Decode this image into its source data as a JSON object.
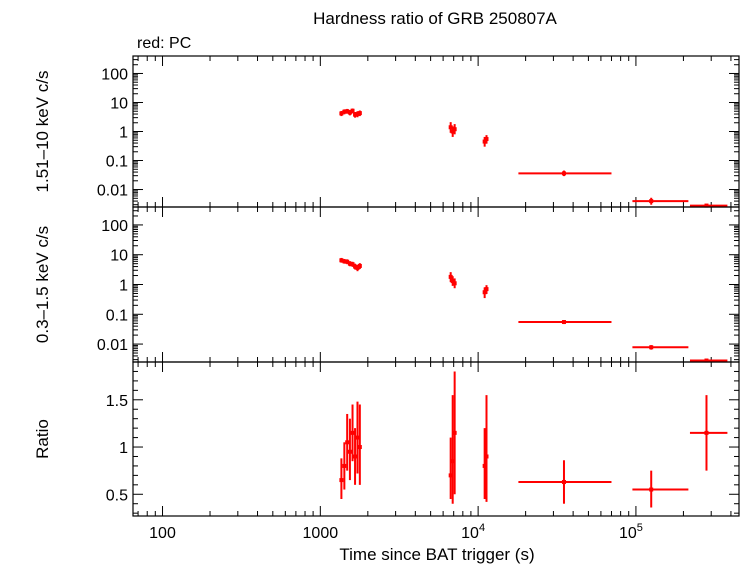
{
  "figure": {
    "title": "Hardness ratio of GRB 250807A",
    "note": "red: PC",
    "xlabel": "Time since BAT trigger (s)"
  },
  "chart_data": [
    {
      "type": "scatter",
      "panel": "top",
      "ylabel": "1.51–10 keV c/s",
      "xscale": "log",
      "yscale": "log",
      "xlim": [
        65,
        450000
      ],
      "ylim": [
        0.0025,
        400
      ],
      "xticks": [
        {
          "value": 100,
          "label": "100"
        },
        {
          "value": 1000,
          "label": "1000"
        },
        {
          "value": 10000,
          "label": "10",
          "exp": "4"
        },
        {
          "value": 100000,
          "label": "10",
          "exp": "5"
        }
      ],
      "yticks": [
        {
          "value": 0.01,
          "label": "0.01"
        },
        {
          "value": 0.1,
          "label": "0.1"
        },
        {
          "value": 1,
          "label": "1"
        },
        {
          "value": 10,
          "label": "10"
        },
        {
          "value": 100,
          "label": "100"
        }
      ],
      "series": [
        {
          "color": "#ff0000",
          "points": [
            {
              "x": 1360,
              "xlo": 1340,
              "xhi": 1380,
              "y": 4.2,
              "ylo": 3.4,
              "yhi": 5.1
            },
            {
              "x": 1420,
              "xlo": 1400,
              "xhi": 1440,
              "y": 4.8,
              "ylo": 3.9,
              "yhi": 5.8
            },
            {
              "x": 1480,
              "xlo": 1460,
              "xhi": 1500,
              "y": 5.0,
              "ylo": 4.1,
              "yhi": 6.0
            },
            {
              "x": 1540,
              "xlo": 1520,
              "xhi": 1560,
              "y": 4.5,
              "ylo": 3.6,
              "yhi": 5.5
            },
            {
              "x": 1600,
              "xlo": 1580,
              "xhi": 1620,
              "y": 5.2,
              "ylo": 4.2,
              "yhi": 6.2
            },
            {
              "x": 1660,
              "xlo": 1640,
              "xhi": 1680,
              "y": 3.8,
              "ylo": 3.0,
              "yhi": 4.7
            },
            {
              "x": 1720,
              "xlo": 1700,
              "xhi": 1740,
              "y": 4.0,
              "ylo": 3.1,
              "yhi": 5.0
            },
            {
              "x": 1780,
              "xlo": 1760,
              "xhi": 1800,
              "y": 4.3,
              "ylo": 3.4,
              "yhi": 5.3
            },
            {
              "x": 6700,
              "xlo": 6600,
              "xhi": 6800,
              "y": 1.4,
              "ylo": 0.9,
              "yhi": 2.1
            },
            {
              "x": 6900,
              "xlo": 6800,
              "xhi": 7000,
              "y": 1.0,
              "ylo": 0.65,
              "yhi": 1.5
            },
            {
              "x": 7100,
              "xlo": 7000,
              "xhi": 7200,
              "y": 1.2,
              "ylo": 0.8,
              "yhi": 1.8
            },
            {
              "x": 11000,
              "xlo": 10800,
              "xhi": 11200,
              "y": 0.45,
              "ylo": 0.3,
              "yhi": 0.65
            },
            {
              "x": 11300,
              "xlo": 11200,
              "xhi": 11400,
              "y": 0.55,
              "ylo": 0.38,
              "yhi": 0.75
            },
            {
              "x": 35000,
              "xlo": 18000,
              "xhi": 70000,
              "y": 0.036,
              "ylo": 0.029,
              "yhi": 0.045
            },
            {
              "x": 125000,
              "xlo": 95000,
              "xhi": 215000,
              "y": 0.004,
              "ylo": 0.003,
              "yhi": 0.0052
            },
            {
              "x": 280000,
              "xlo": 220000,
              "xhi": 380000,
              "y": 0.0028,
              "ylo": 0.0025,
              "yhi": 0.0031
            }
          ]
        }
      ]
    },
    {
      "type": "scatter",
      "panel": "middle",
      "ylabel": "0.3–1.5 keV c/s",
      "xscale": "log",
      "yscale": "log",
      "xlim": [
        65,
        450000
      ],
      "ylim": [
        0.0025,
        400
      ],
      "yticks": [
        {
          "value": 0.01,
          "label": "0.01"
        },
        {
          "value": 0.1,
          "label": "0.1"
        },
        {
          "value": 1,
          "label": "1"
        },
        {
          "value": 10,
          "label": "10"
        },
        {
          "value": 100,
          "label": "100"
        }
      ],
      "series": [
        {
          "color": "#ff0000",
          "points": [
            {
              "x": 1360,
              "xlo": 1340,
              "xhi": 1380,
              "y": 6.5,
              "ylo": 5.4,
              "yhi": 7.8
            },
            {
              "x": 1420,
              "xlo": 1400,
              "xhi": 1440,
              "y": 6.0,
              "ylo": 5.0,
              "yhi": 7.2
            },
            {
              "x": 1480,
              "xlo": 1460,
              "xhi": 1500,
              "y": 5.8,
              "ylo": 4.8,
              "yhi": 7.0
            },
            {
              "x": 1540,
              "xlo": 1520,
              "xhi": 1560,
              "y": 5.0,
              "ylo": 4.1,
              "yhi": 6.1
            },
            {
              "x": 1600,
              "xlo": 1580,
              "xhi": 1620,
              "y": 4.8,
              "ylo": 3.9,
              "yhi": 5.8
            },
            {
              "x": 1660,
              "xlo": 1640,
              "xhi": 1680,
              "y": 4.0,
              "ylo": 3.2,
              "yhi": 5.0
            },
            {
              "x": 1720,
              "xlo": 1700,
              "xhi": 1740,
              "y": 3.6,
              "ylo": 2.8,
              "yhi": 4.6
            },
            {
              "x": 1780,
              "xlo": 1760,
              "xhi": 1800,
              "y": 4.2,
              "ylo": 3.3,
              "yhi": 5.2
            },
            {
              "x": 6700,
              "xlo": 6600,
              "xhi": 6800,
              "y": 1.8,
              "ylo": 1.2,
              "yhi": 2.6
            },
            {
              "x": 6900,
              "xlo": 6800,
              "xhi": 7000,
              "y": 1.3,
              "ylo": 0.9,
              "yhi": 1.9
            },
            {
              "x": 7100,
              "xlo": 7000,
              "xhi": 7200,
              "y": 1.1,
              "ylo": 0.75,
              "yhi": 1.6
            },
            {
              "x": 11000,
              "xlo": 10800,
              "xhi": 11200,
              "y": 0.55,
              "ylo": 0.35,
              "yhi": 0.8
            },
            {
              "x": 11300,
              "xlo": 11200,
              "xhi": 11400,
              "y": 0.7,
              "ylo": 0.48,
              "yhi": 0.95
            },
            {
              "x": 35000,
              "xlo": 18000,
              "xhi": 70000,
              "y": 0.055,
              "ylo": 0.047,
              "yhi": 0.064
            },
            {
              "x": 125000,
              "xlo": 95000,
              "xhi": 215000,
              "y": 0.0078,
              "ylo": 0.0065,
              "yhi": 0.0092
            },
            {
              "x": 280000,
              "xlo": 220000,
              "xhi": 380000,
              "y": 0.0028,
              "ylo": 0.0025,
              "yhi": 0.0031
            }
          ]
        }
      ]
    },
    {
      "type": "scatter",
      "panel": "bottom",
      "ylabel": "Ratio",
      "xscale": "log",
      "yscale": "linear",
      "xlim": [
        65,
        450000
      ],
      "ylim": [
        0.27,
        1.9
      ],
      "yticks": [
        {
          "value": 0.5,
          "label": "0.5"
        },
        {
          "value": 1,
          "label": "1"
        },
        {
          "value": 1.5,
          "label": "1.5"
        }
      ],
      "series": [
        {
          "color": "#ff0000",
          "points": [
            {
              "x": 1360,
              "xlo": 1340,
              "xhi": 1380,
              "y": 0.65,
              "ylo": 0.45,
              "yhi": 0.88
            },
            {
              "x": 1420,
              "xlo": 1400,
              "xhi": 1440,
              "y": 0.8,
              "ylo": 0.55,
              "yhi": 1.05
            },
            {
              "x": 1480,
              "xlo": 1460,
              "xhi": 1500,
              "y": 1.05,
              "ylo": 0.75,
              "yhi": 1.35
            },
            {
              "x": 1540,
              "xlo": 1520,
              "xhi": 1560,
              "y": 0.95,
              "ylo": 0.65,
              "yhi": 1.3
            },
            {
              "x": 1600,
              "xlo": 1580,
              "xhi": 1620,
              "y": 1.15,
              "ylo": 0.85,
              "yhi": 1.45
            },
            {
              "x": 1660,
              "xlo": 1640,
              "xhi": 1680,
              "y": 0.9,
              "ylo": 0.6,
              "yhi": 1.2
            },
            {
              "x": 1720,
              "xlo": 1700,
              "xhi": 1740,
              "y": 1.1,
              "ylo": 0.72,
              "yhi": 1.48
            },
            {
              "x": 1780,
              "xlo": 1760,
              "xhi": 1800,
              "y": 1.0,
              "ylo": 0.6,
              "yhi": 1.45
            },
            {
              "x": 6700,
              "xlo": 6600,
              "xhi": 6800,
              "y": 0.7,
              "ylo": 0.45,
              "yhi": 1.1
            },
            {
              "x": 6900,
              "xlo": 6800,
              "xhi": 7000,
              "y": 0.85,
              "ylo": 0.4,
              "yhi": 1.55
            },
            {
              "x": 7100,
              "xlo": 7000,
              "xhi": 7200,
              "y": 1.15,
              "ylo": 0.5,
              "yhi": 1.8
            },
            {
              "x": 11000,
              "xlo": 10800,
              "xhi": 11200,
              "y": 0.8,
              "ylo": 0.45,
              "yhi": 1.2
            },
            {
              "x": 11300,
              "xlo": 11200,
              "xhi": 11400,
              "y": 0.9,
              "ylo": 0.42,
              "yhi": 1.55
            },
            {
              "x": 35000,
              "xlo": 18000,
              "xhi": 70000,
              "y": 0.63,
              "ylo": 0.4,
              "yhi": 0.86
            },
            {
              "x": 125000,
              "xlo": 95000,
              "xhi": 215000,
              "y": 0.55,
              "ylo": 0.36,
              "yhi": 0.75
            },
            {
              "x": 280000,
              "xlo": 220000,
              "xhi": 380000,
              "y": 1.15,
              "ylo": 0.75,
              "yhi": 1.55
            }
          ]
        }
      ]
    }
  ]
}
